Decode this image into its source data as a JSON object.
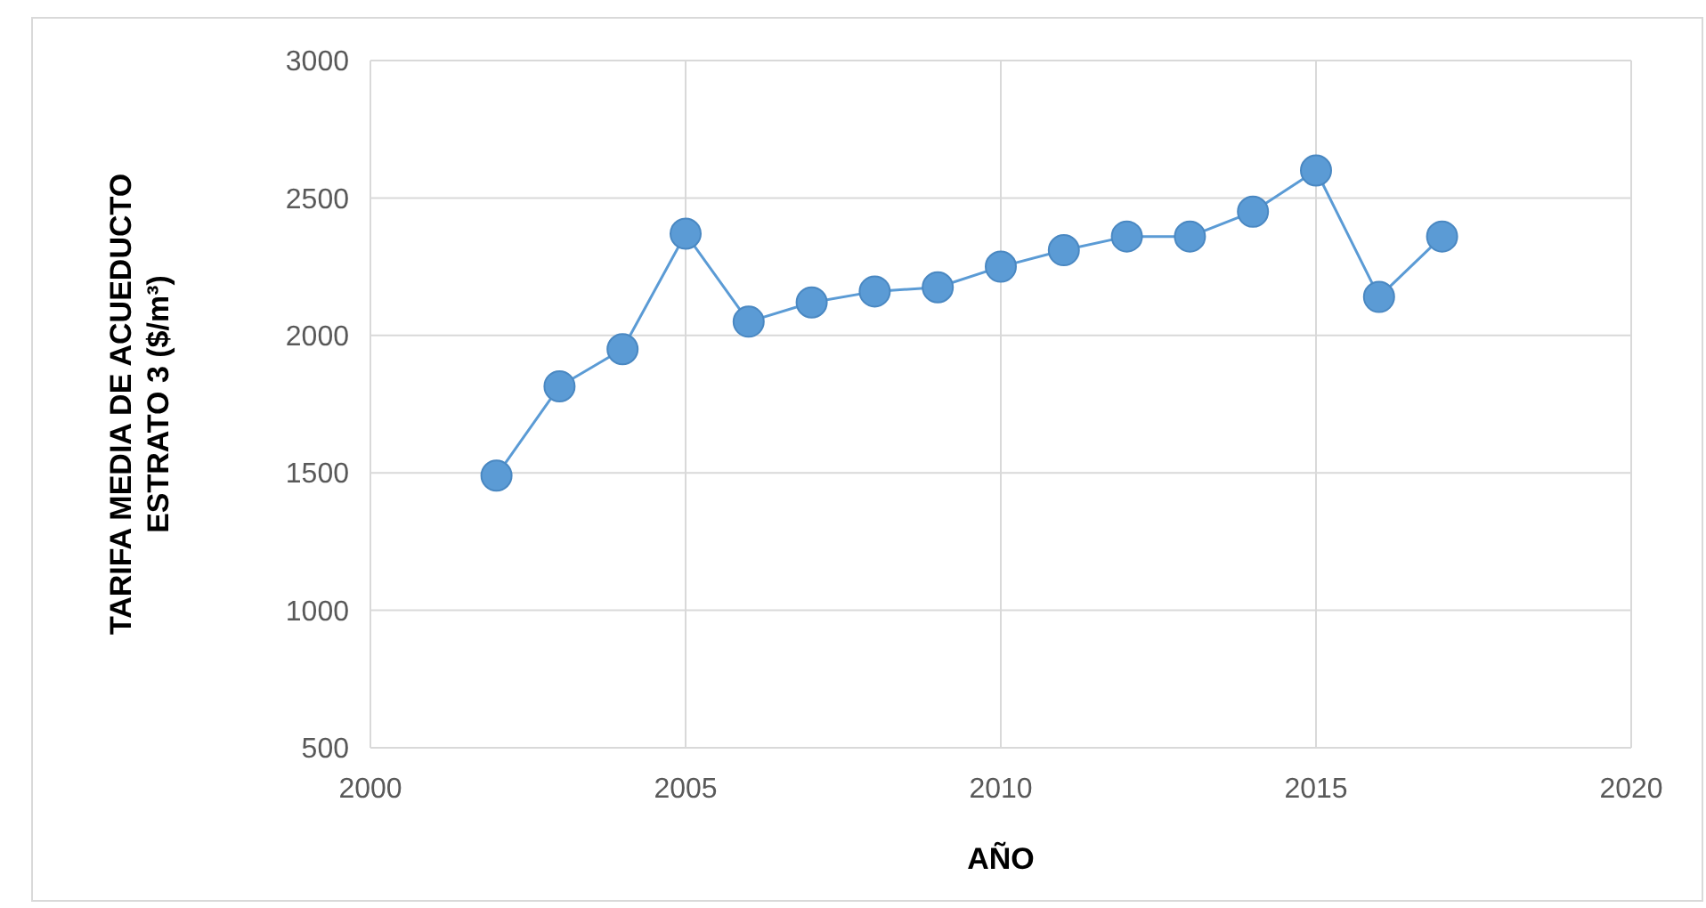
{
  "chart_data": {
    "type": "line",
    "xlabel": "AÑO",
    "ylabel": "TARIFA MEDIA DE ACUEDUCTO ESTRATO 3 ($/m³)",
    "x": [
      2002,
      2003,
      2004,
      2005,
      2006,
      2007,
      2008,
      2009,
      2010,
      2011,
      2012,
      2013,
      2014,
      2015,
      2016,
      2017
    ],
    "series": [
      {
        "color": "#5b9bd5",
        "values": [
          1490,
          1815,
          1950,
          2370,
          2050,
          2120,
          2160,
          2175,
          2250,
          2310,
          2360,
          2360,
          2450,
          2600,
          2140,
          2360
        ]
      }
    ],
    "xlim": [
      2000,
      2020
    ],
    "xticks": [
      2000,
      2005,
      2010,
      2015,
      2020
    ],
    "ylim": [
      500,
      3000
    ],
    "yticks": [
      500,
      1000,
      1500,
      2000,
      2500,
      3000
    ],
    "grid": true,
    "marker": "circle",
    "line_style": "solid"
  }
}
